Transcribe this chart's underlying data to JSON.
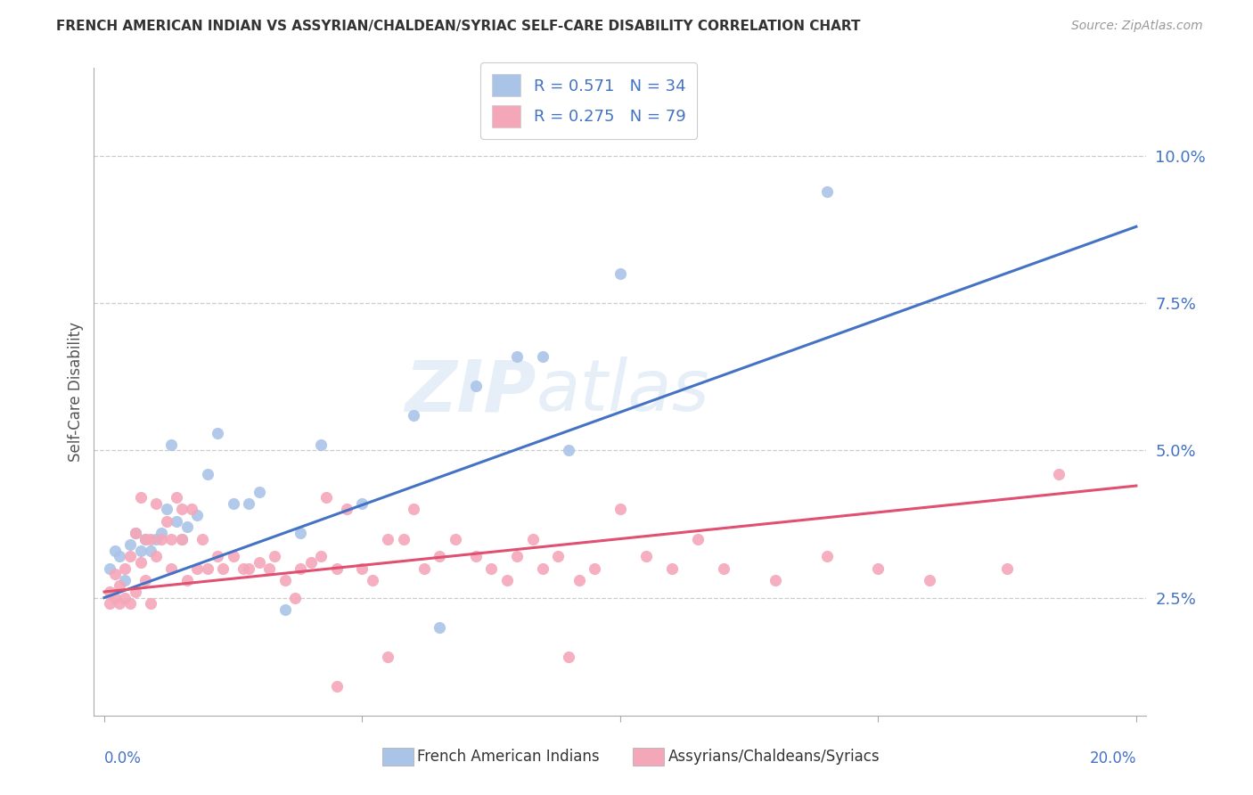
{
  "title": "FRENCH AMERICAN INDIAN VS ASSYRIAN/CHALDEAN/SYRIAC SELF-CARE DISABILITY CORRELATION CHART",
  "source": "Source: ZipAtlas.com",
  "ylabel": "Self-Care Disability",
  "ytick_labels": [
    "2.5%",
    "5.0%",
    "7.5%",
    "10.0%"
  ],
  "ytick_values": [
    0.025,
    0.05,
    0.075,
    0.1
  ],
  "xlim": [
    -0.002,
    0.202
  ],
  "ylim": [
    0.005,
    0.115
  ],
  "watermark_text": "ZIP",
  "watermark_text2": "atlas",
  "legend_label1": "R = 0.571   N = 34",
  "legend_label2": "R = 0.275   N = 79",
  "legend_color1": "#aac4e8",
  "legend_color2": "#f4a7b9",
  "scatter_color1": "#aac4e8",
  "scatter_color2": "#f4a7b9",
  "line_color1": "#4472c4",
  "line_color2": "#e05070",
  "footer_label1": "French American Indians",
  "footer_label2": "Assyrians/Chaldeans/Syriacs",
  "blue_x": [
    0.001,
    0.002,
    0.003,
    0.004,
    0.005,
    0.006,
    0.007,
    0.008,
    0.009,
    0.01,
    0.011,
    0.012,
    0.013,
    0.014,
    0.015,
    0.016,
    0.018,
    0.02,
    0.022,
    0.025,
    0.028,
    0.03,
    0.035,
    0.038,
    0.042,
    0.05,
    0.06,
    0.065,
    0.072,
    0.08,
    0.085,
    0.09,
    0.1,
    0.14
  ],
  "blue_y": [
    0.03,
    0.033,
    0.032,
    0.028,
    0.034,
    0.036,
    0.033,
    0.035,
    0.033,
    0.035,
    0.036,
    0.04,
    0.051,
    0.038,
    0.035,
    0.037,
    0.039,
    0.046,
    0.053,
    0.041,
    0.041,
    0.043,
    0.023,
    0.036,
    0.051,
    0.041,
    0.056,
    0.02,
    0.061,
    0.066,
    0.066,
    0.05,
    0.08,
    0.094
  ],
  "pink_x": [
    0.001,
    0.001,
    0.002,
    0.002,
    0.003,
    0.003,
    0.004,
    0.004,
    0.005,
    0.005,
    0.006,
    0.006,
    0.007,
    0.007,
    0.008,
    0.008,
    0.009,
    0.009,
    0.01,
    0.01,
    0.011,
    0.012,
    0.013,
    0.013,
    0.014,
    0.015,
    0.015,
    0.016,
    0.017,
    0.018,
    0.019,
    0.02,
    0.022,
    0.023,
    0.025,
    0.027,
    0.028,
    0.03,
    0.032,
    0.033,
    0.035,
    0.037,
    0.038,
    0.04,
    0.042,
    0.043,
    0.045,
    0.047,
    0.05,
    0.052,
    0.055,
    0.058,
    0.06,
    0.062,
    0.065,
    0.068,
    0.072,
    0.075,
    0.078,
    0.08,
    0.083,
    0.085,
    0.088,
    0.092,
    0.095,
    0.1,
    0.105,
    0.11,
    0.115,
    0.12,
    0.13,
    0.14,
    0.15,
    0.16,
    0.175,
    0.185,
    0.09,
    0.045,
    0.055
  ],
  "pink_y": [
    0.026,
    0.024,
    0.025,
    0.029,
    0.024,
    0.027,
    0.025,
    0.03,
    0.024,
    0.032,
    0.036,
    0.026,
    0.031,
    0.042,
    0.028,
    0.035,
    0.024,
    0.035,
    0.032,
    0.041,
    0.035,
    0.038,
    0.03,
    0.035,
    0.042,
    0.035,
    0.04,
    0.028,
    0.04,
    0.03,
    0.035,
    0.03,
    0.032,
    0.03,
    0.032,
    0.03,
    0.03,
    0.031,
    0.03,
    0.032,
    0.028,
    0.025,
    0.03,
    0.031,
    0.032,
    0.042,
    0.03,
    0.04,
    0.03,
    0.028,
    0.035,
    0.035,
    0.04,
    0.03,
    0.032,
    0.035,
    0.032,
    0.03,
    0.028,
    0.032,
    0.035,
    0.03,
    0.032,
    0.028,
    0.03,
    0.04,
    0.032,
    0.03,
    0.035,
    0.03,
    0.028,
    0.032,
    0.03,
    0.028,
    0.03,
    0.046,
    0.015,
    0.01,
    0.015
  ],
  "trendline1_x": [
    0.0,
    0.2
  ],
  "trendline1_y": [
    0.025,
    0.088
  ],
  "trendline2_x": [
    0.0,
    0.2
  ],
  "trendline2_y": [
    0.026,
    0.044
  ]
}
